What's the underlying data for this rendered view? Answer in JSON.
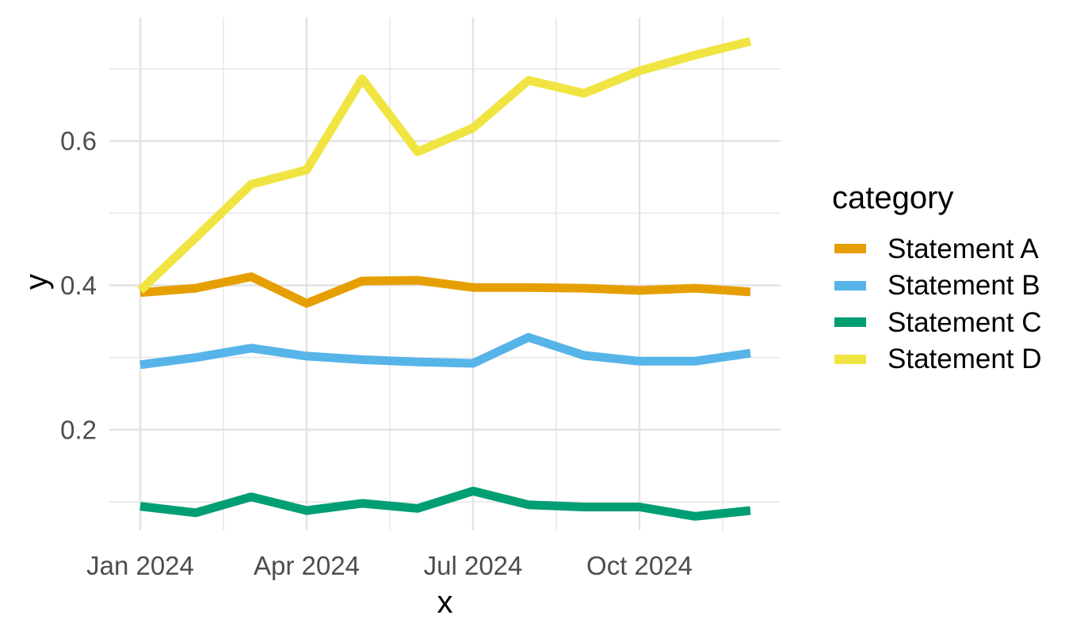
{
  "figure": {
    "background": "#ffffff"
  },
  "axes": {
    "x": {
      "title": "x",
      "tick_labels": [
        "Jan 2024",
        "Apr 2024",
        "Jul 2024",
        "Oct 2024"
      ]
    },
    "y": {
      "title": "y",
      "tick_labels": [
        "0.2",
        "0.4",
        "0.6"
      ]
    }
  },
  "legend": {
    "title": "category",
    "items": [
      {
        "label": "Statement A",
        "color": "#E69F00"
      },
      {
        "label": "Statement B",
        "color": "#56B4E9"
      },
      {
        "label": "Statement C",
        "color": "#009E73"
      },
      {
        "label": "Statement D",
        "color": "#F0E442"
      }
    ]
  },
  "chart_data": {
    "type": "line",
    "x": [
      "2024-01",
      "2024-02",
      "2024-03",
      "2024-04",
      "2024-05",
      "2024-06",
      "2024-07",
      "2024-08",
      "2024-09",
      "2024-10",
      "2024-11",
      "2024-12"
    ],
    "x_tick_positions": [
      0,
      3,
      6,
      9
    ],
    "x_tick_labels": [
      "Jan 2024",
      "Apr 2024",
      "Jul 2024",
      "Oct 2024"
    ],
    "x_minor_positions": [
      1.5,
      4.5,
      7.5,
      10.5
    ],
    "y_major_ticks": [
      0.2,
      0.4,
      0.6
    ],
    "y_minor_ticks": [
      0.1,
      0.3,
      0.5,
      0.7
    ],
    "ylim": [
      0.061,
      0.771
    ],
    "xlabel": "x",
    "ylabel": "y",
    "grid": true,
    "legend_position": "right",
    "legend_title": "category",
    "series": [
      {
        "name": "Statement A",
        "color": "#E69F00",
        "values": [
          0.39,
          0.396,
          0.412,
          0.375,
          0.406,
          0.407,
          0.397,
          0.397,
          0.396,
          0.393,
          0.396,
          0.391
        ]
      },
      {
        "name": "Statement B",
        "color": "#56B4E9",
        "values": [
          0.29,
          0.3,
          0.313,
          0.302,
          0.297,
          0.294,
          0.292,
          0.328,
          0.303,
          0.295,
          0.295,
          0.306
        ]
      },
      {
        "name": "Statement C",
        "color": "#009E73",
        "values": [
          0.094,
          0.085,
          0.107,
          0.088,
          0.098,
          0.091,
          0.115,
          0.096,
          0.093,
          0.093,
          0.08,
          0.088
        ]
      },
      {
        "name": "Statement D",
        "color": "#F0E442",
        "values": [
          0.393,
          0.466,
          0.54,
          0.56,
          0.686,
          0.585,
          0.618,
          0.684,
          0.666,
          0.697,
          0.719,
          0.738
        ]
      }
    ],
    "style": {
      "line_width": 11,
      "grid_major_color": "#E3E3E3",
      "grid_minor_color": "#EAEAEA",
      "tick_text_color": "#4d4d4d",
      "title_text_color": "#000000"
    }
  }
}
